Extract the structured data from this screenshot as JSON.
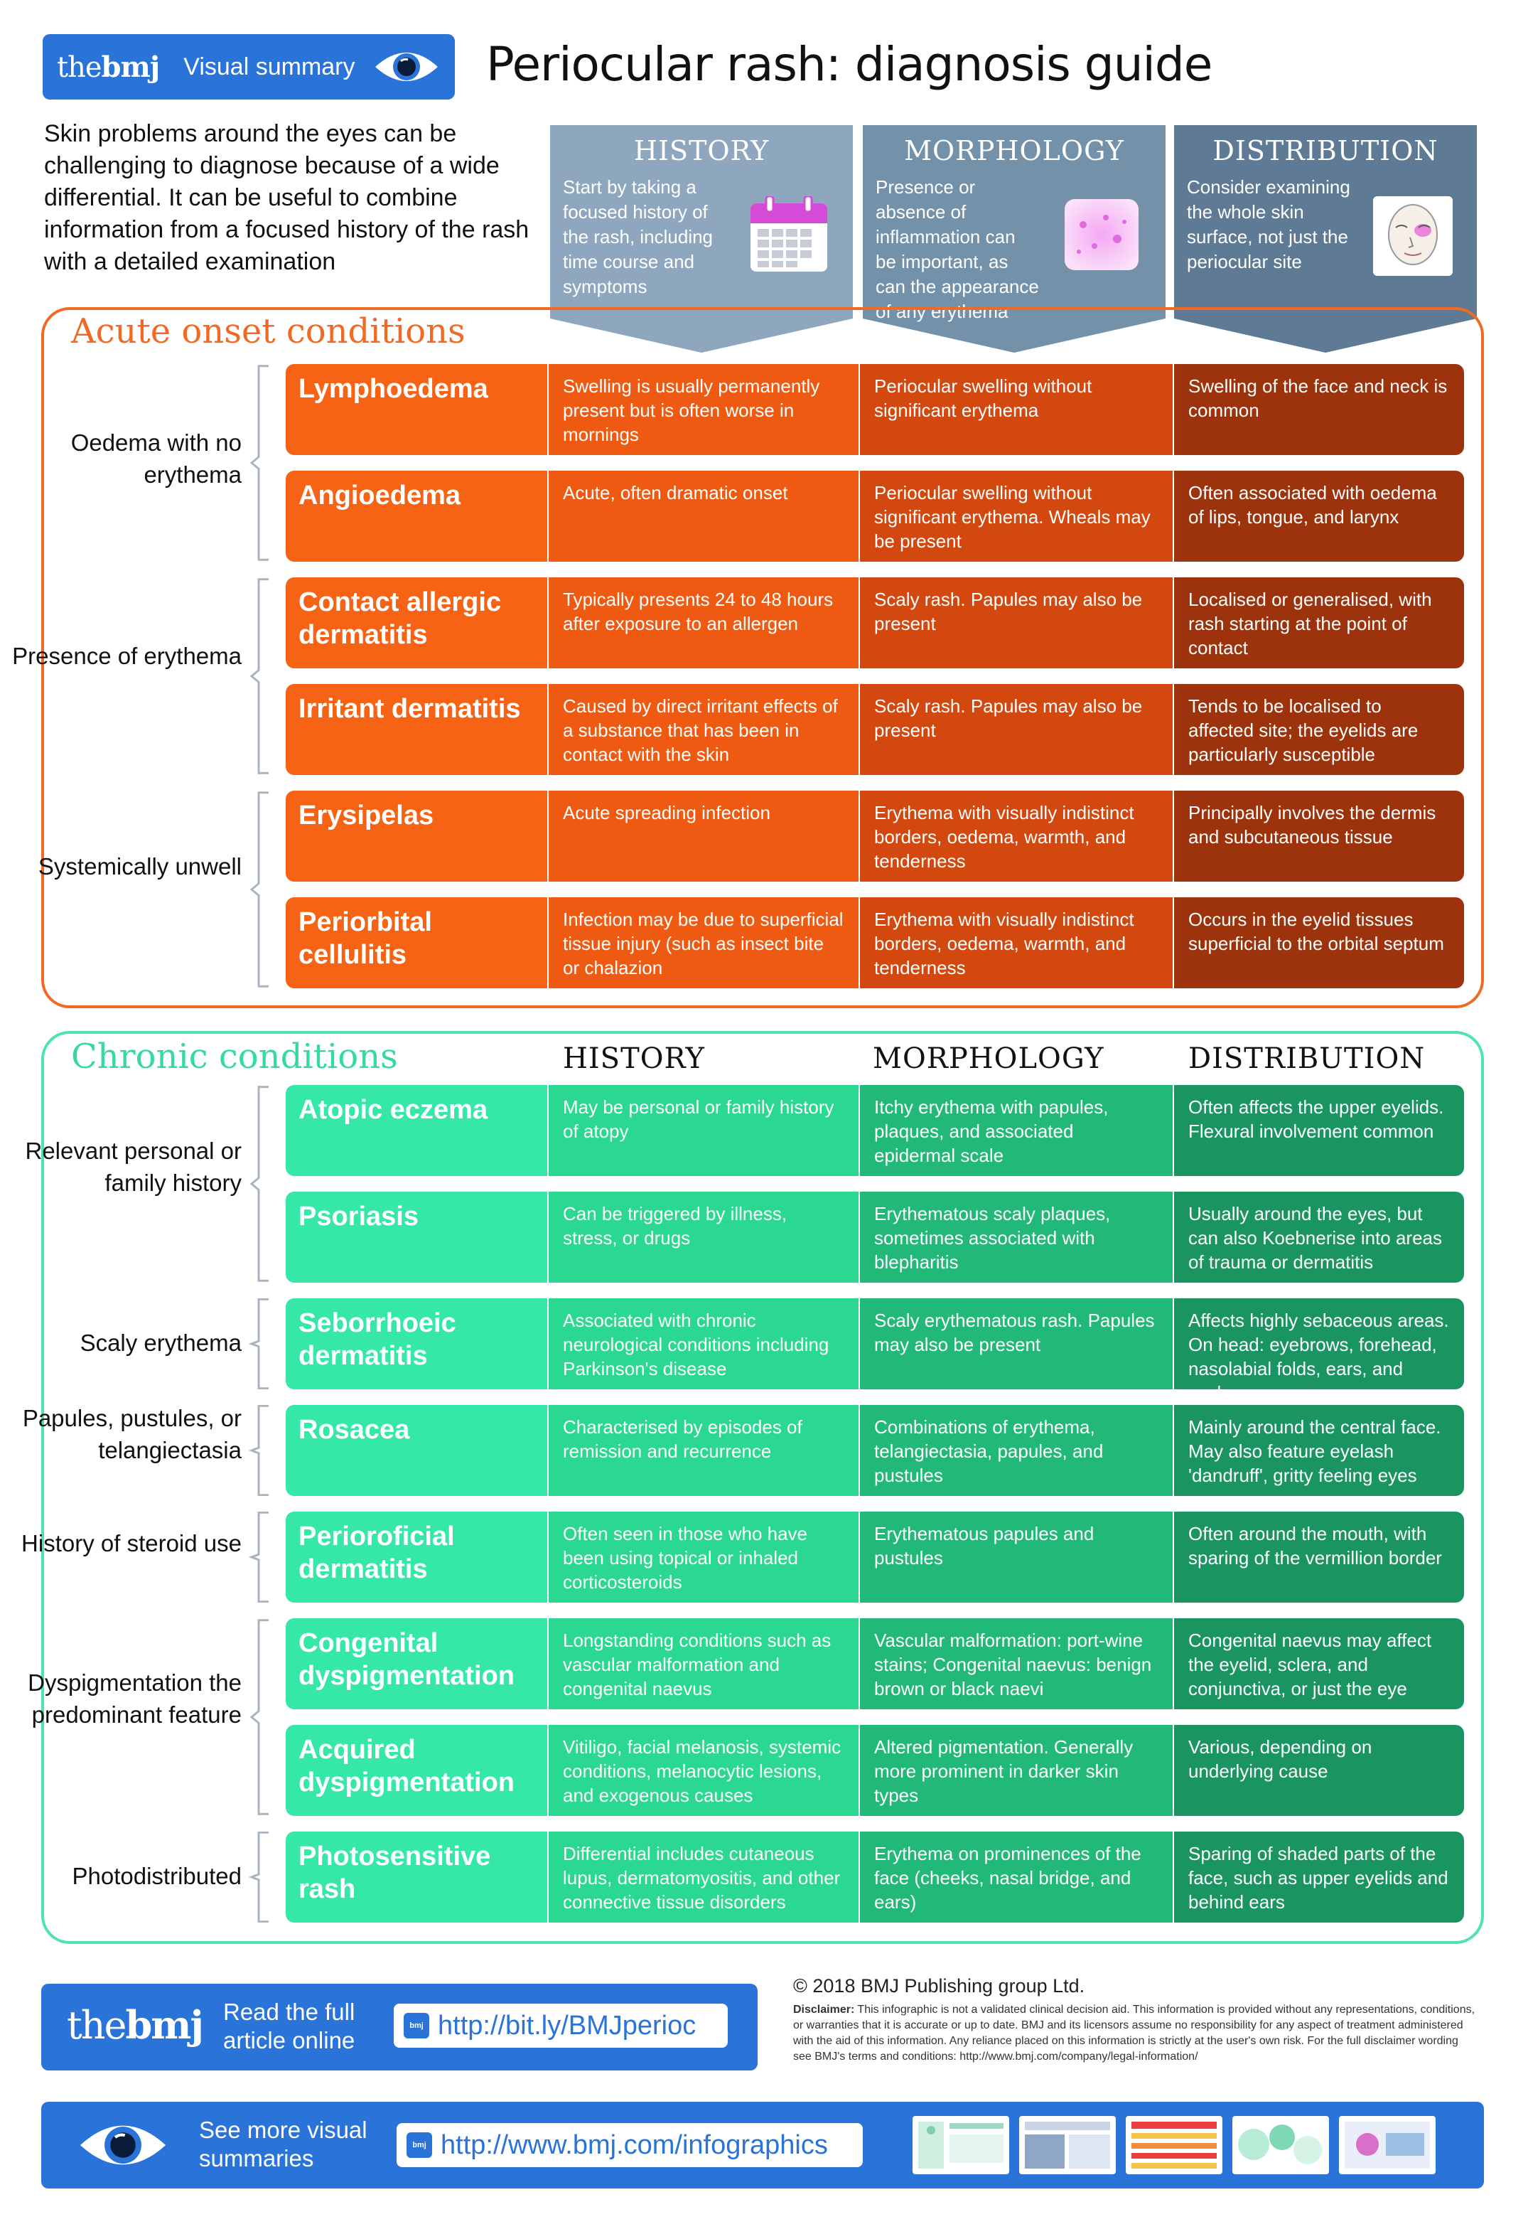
{
  "header": {
    "brand_logo_prefix": "the",
    "brand_logo_suffix": "bmj",
    "brand_label": "Visual summary",
    "title": "Periocular rash: diagnosis guide",
    "intro": "Skin problems around the eyes can be challenging to diagnose because of a wide differential. It can be useful to combine information from a focused history of the rash with a detailed examination"
  },
  "columns": [
    {
      "title": "HISTORY",
      "desc": "Start by taking a focused history of the rash, including time course and symptoms",
      "icon": "calendar-icon"
    },
    {
      "title": "MORPHOLOGY",
      "desc": "Presence or absence of inflammation can be important, as can the appearance of any erythema",
      "icon": "skin-swatch-icon"
    },
    {
      "title": "DISTRIBUTION",
      "desc": "Consider examining the whole skin surface, not just the periocular site",
      "icon": "face-icon"
    }
  ],
  "acute": {
    "title": "Acute onset conditions",
    "groups": [
      {
        "label": "Oedema with no erythema"
      },
      {
        "label": "Presence of erythema"
      },
      {
        "label": "Systemically unwell"
      }
    ],
    "rows": [
      {
        "name": "Lymphoedema",
        "history": "Swelling is usually permanently present but is often worse in mornings",
        "morphology": "Periocular swelling without significant erythema",
        "distribution": "Swelling of the face and neck is common"
      },
      {
        "name": "Angioedema",
        "history": "Acute, often dramatic onset",
        "morphology": "Periocular swelling without significant erythema. Wheals may be present",
        "distribution": "Often associated with oedema of lips, tongue, and larynx"
      },
      {
        "name": "Contact allergic dermatitis",
        "history": "Typically presents 24 to 48 hours after exposure to an allergen",
        "morphology": "Scaly rash. Papules may also be present",
        "distribution": "Localised or generalised, with rash starting at the point of contact"
      },
      {
        "name": "Irritant dermatitis",
        "history": "Caused by direct irritant effects of a substance that has been in contact with the skin",
        "morphology": "Scaly rash. Papules may also be present",
        "distribution": "Tends to be localised to affected site; the eyelids are particularly susceptible"
      },
      {
        "name": "Erysipelas",
        "history": "Acute spreading infection",
        "morphology": "Erythema with visually indistinct borders, oedema, warmth, and tenderness",
        "distribution": "Principally involves the dermis and subcutaneous tissue"
      },
      {
        "name": "Periorbital cellulitis",
        "history": "Infection may be due to superficial tissue injury (such as insect bite or chalazion",
        "morphology": "Erythema with visually indistinct borders, oedema, warmth, and tenderness",
        "distribution": "Occurs in the eyelid tissues superficial to the orbital septum"
      }
    ]
  },
  "chronic": {
    "title": "Chronic conditions",
    "headers": [
      "HISTORY",
      "MORPHOLOGY",
      "DISTRIBUTION"
    ],
    "groups": [
      {
        "label": "Relevant personal or family history"
      },
      {
        "label": "Scaly erythema"
      },
      {
        "label": "Papules, pustules, or telangiectasia"
      },
      {
        "label": "History of steroid use"
      },
      {
        "label": "Dyspigmentation the predominant feature"
      },
      {
        "label": "Photodistributed"
      }
    ],
    "rows": [
      {
        "name": "Atopic eczema",
        "history": "May be personal or family history of atopy",
        "morphology": "Itchy erythema with papules, plaques, and associated epidermal scale",
        "distribution": "Often affects the upper eyelids. Flexural involvement common"
      },
      {
        "name": "Psoriasis",
        "history": "Can be triggered by illness, stress, or drugs",
        "morphology": "Erythematous scaly plaques, sometimes associated with blepharitis",
        "distribution": "Usually around the eyes, but can also Koebnerise into areas of trauma or dermatitis"
      },
      {
        "name": "Seborrhoeic dermatitis",
        "history": "Associated with chronic neurological conditions including Parkinson's disease",
        "morphology": "Scaly erythematous rash. Papules may also be present",
        "distribution": "Affects highly sebaceous areas. On head: eyebrows, forehead, nasolabial folds, ears, and scalp"
      },
      {
        "name": "Rosacea",
        "history": "Characterised by episodes of remission and recurrence",
        "morphology": "Combinations of erythema, telangiectasia, papules, and pustules",
        "distribution": "Mainly around the central face. May also feature eyelash 'dandruff', gritty feeling eyes"
      },
      {
        "name": "Perioroficial dermatitis",
        "history": "Often seen in those who have been using topical or inhaled corticosteroids",
        "morphology": "Erythematous papules and pustules",
        "distribution": "Often around the mouth, with sparing of the vermillion border"
      },
      {
        "name": "Congenital dyspigmentation",
        "history": "Longstanding conditions such as vascular malformation and congenital naevus",
        "morphology": "Vascular malformation: port-wine stains; Congenital naevus: benign brown or black naevi",
        "distribution": "Congenital naevus may affect the eyelid, sclera, and conjunctiva, or just the eye"
      },
      {
        "name": "Acquired dyspigmentation",
        "history": "Vitiligo, facial melanosis, systemic conditions, melanocytic lesions, and exogenous causes",
        "morphology": "Altered pigmentation. Generally more prominent in darker skin types",
        "distribution": "Various, depending on underlying cause"
      },
      {
        "name": "Photosensitive rash",
        "history": "Differential includes cutaneous lupus, dermatomyositis, and other connective tissue disorders",
        "morphology": "Erythema on prominences of the face (cheeks, nasal bridge, and ears)",
        "distribution": "Sparing of shaded parts of the face, such as upper eyelids and behind ears"
      }
    ]
  },
  "footer": {
    "copyright": "© 2018 BMJ Publishing group Ltd.",
    "disclaimer_label": "Disclaimer:",
    "disclaimer": "This infographic is not a validated clinical decision aid. This information is provided without any representations, conditions, or warranties that it is accurate or up to date. BMJ and its licensors assume no responsibility for any aspect of treatment administered with the aid of this information. Any reliance placed on this information is strictly at the user's own risk. For the full disclaimer wording see BMJ's terms and conditions: http://www.bmj.com/company/legal-information/",
    "read_text": "Read the full article online",
    "article_link": "http://bit.ly/BMJperioc",
    "more_text": "See more visual summaries",
    "infographics_link": "http://www.bmj.com/infographics",
    "mini_logo": "bmj"
  },
  "colors": {
    "brand_blue": "#2a73d8",
    "acute_orange": "#f06a23",
    "chronic_green": "#36d9a6"
  }
}
